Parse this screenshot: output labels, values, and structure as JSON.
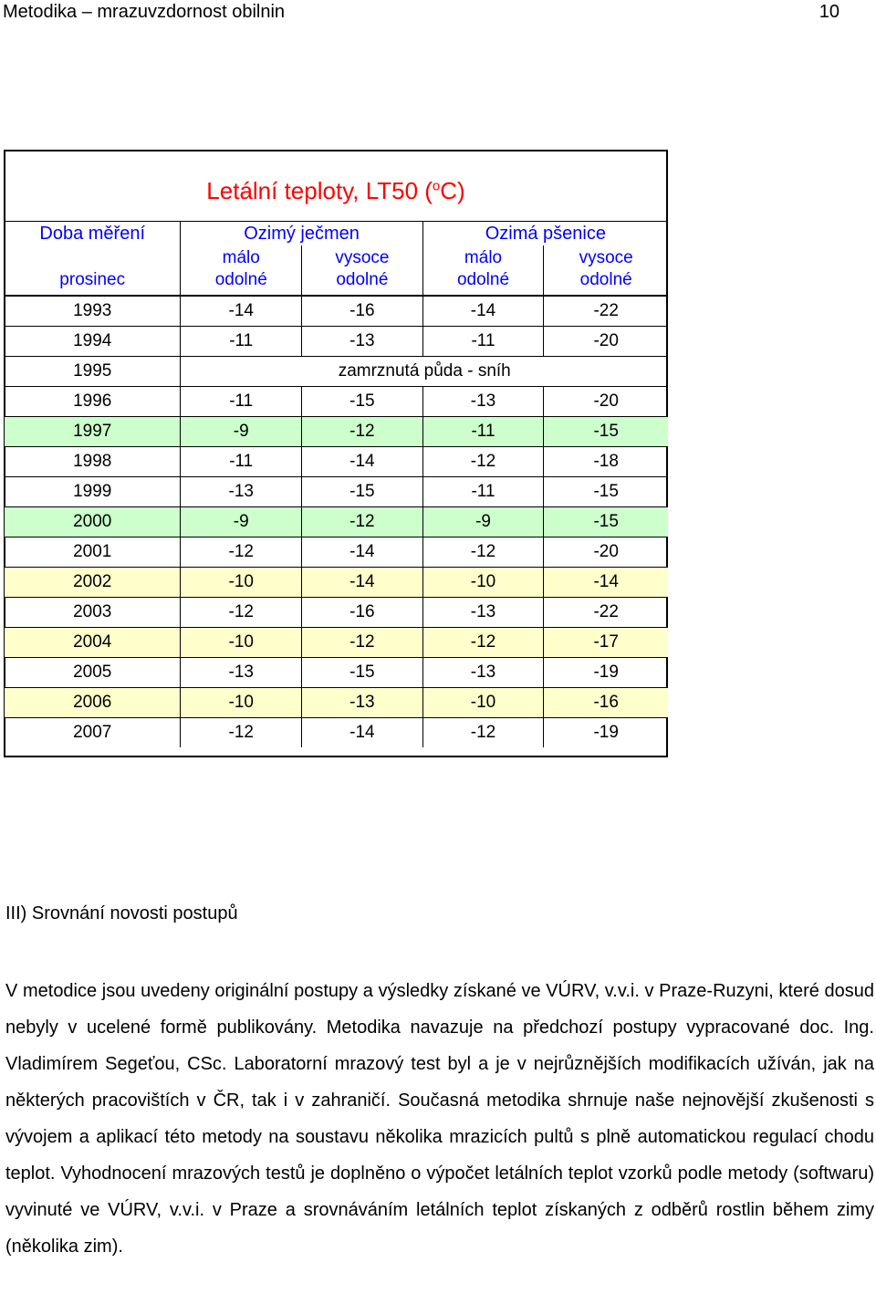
{
  "header": {
    "title": "Metodika – mrazuvzdornost obilnin",
    "page_number": "10"
  },
  "table": {
    "title": "Letální teploty, LT50 (",
    "title_sup": "o",
    "title_end": "C)",
    "col_header": {
      "doba": "Doba měření",
      "jecmen": "Ozimý ječmen",
      "psenice": "Ozimá pšenice"
    },
    "sub_header": {
      "prosinec": "prosinec",
      "malo_1": "málo",
      "odolne_1": "odolné",
      "vysoce_1": "vysoce",
      "odolne_2": "odolné",
      "malo_2": "málo",
      "odolne_3": "odolné",
      "vysoce_2": "vysoce",
      "odolne_4": "odolné"
    },
    "note_1995": "zamrznutá půda - sníh",
    "rows": [
      {
        "year": "1993",
        "v": [
          "-14",
          "-16",
          "-14",
          "-22"
        ],
        "hl": ""
      },
      {
        "year": "1994",
        "v": [
          "-11",
          "-13",
          "-11",
          "-20"
        ],
        "hl": ""
      },
      {
        "year": "1995",
        "v": [],
        "hl": ""
      },
      {
        "year": "1996",
        "v": [
          "-11",
          "-15",
          "-13",
          "-20"
        ],
        "hl": ""
      },
      {
        "year": "1997",
        "v": [
          "-9",
          "-12",
          "-11",
          "-15"
        ],
        "hl": "green"
      },
      {
        "year": "1998",
        "v": [
          "-11",
          "-14",
          "-12",
          "-18"
        ],
        "hl": ""
      },
      {
        "year": "1999",
        "v": [
          "-13",
          "-15",
          "-11",
          "-15"
        ],
        "hl": ""
      },
      {
        "year": "2000",
        "v": [
          "-9",
          "-12",
          "-9",
          "-15"
        ],
        "hl": "green"
      },
      {
        "year": "2001",
        "v": [
          "-12",
          "-14",
          "-12",
          "-20"
        ],
        "hl": ""
      },
      {
        "year": "2002",
        "v": [
          "-10",
          "-14",
          "-10",
          "-14"
        ],
        "hl": "yellow"
      },
      {
        "year": "2003",
        "v": [
          "-12",
          "-16",
          "-13",
          "-22"
        ],
        "hl": ""
      },
      {
        "year": "2004",
        "v": [
          "-10",
          "-12",
          "-12",
          "-17"
        ],
        "hl": "yellow"
      },
      {
        "year": "2005",
        "v": [
          "-13",
          "-15",
          "-13",
          "-19"
        ],
        "hl": ""
      },
      {
        "year": "2006",
        "v": [
          "-10",
          "-13",
          "-10",
          "-16"
        ],
        "hl": "yellow"
      },
      {
        "year": "2007",
        "v": [
          "-12",
          "-14",
          "-12",
          "-19"
        ],
        "hl": ""
      }
    ]
  },
  "section": {
    "heading": "III) Srovnání novosti postupů",
    "paragraph": "V metodice jsou uvedeny originální postupy a výsledky získané ve VÚRV, v.v.i. v Praze-Ruzyni, které dosud nebyly v ucelené formě publikovány. Metodika navazuje na předchozí postupy vypracované doc. Ing. Vladimírem Segeťou, CSc. Laboratorní mrazový test byl a je v nejrůznějších modifikacích užíván, jak na některých pracovištích v ČR, tak i v zahraničí. Současná metodika shrnuje naše nejnovější zkušenosti s vývojem a aplikací této metody na soustavu několika mrazicích pultů s plně automatickou regulací chodu teplot. Vyhodnocení mrazových testů je doplněno o výpočet letálních teplot vzorků podle metody (softwaru) vyvinuté ve VÚRV, v.v.i. v Praze a srovnáváním letálních teplot získaných z odběrů rostlin během zimy (několika zim)."
  }
}
